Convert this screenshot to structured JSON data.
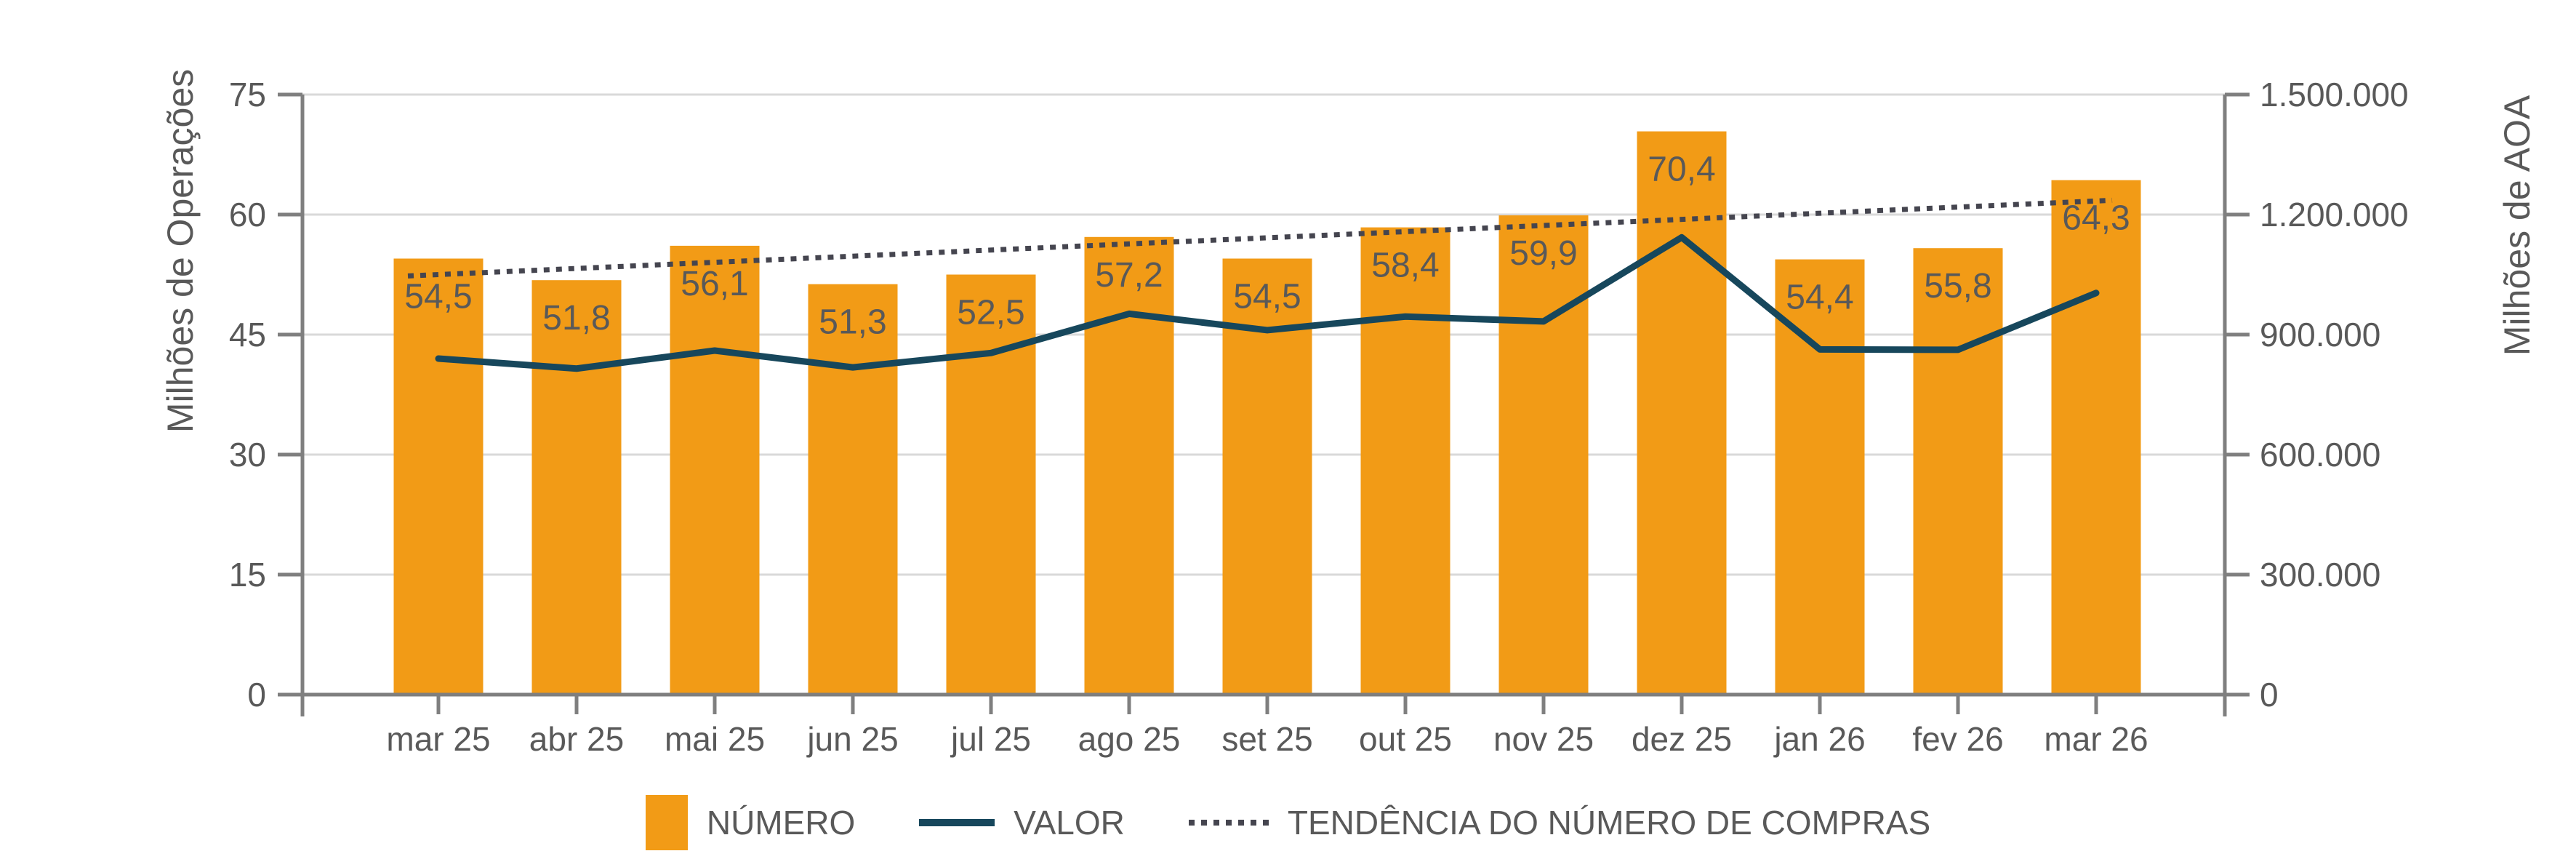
{
  "chart_data": {
    "type": "combo",
    "categories": [
      "mar 25",
      "abr 25",
      "mai 25",
      "jun 25",
      "jul 25",
      "ago 25",
      "set 25",
      "out 25",
      "nov 25",
      "dez 25",
      "jan 26",
      "fev 26",
      "mar 26"
    ],
    "series": [
      {
        "name": "NÚMERO",
        "type": "bar",
        "axis": "left",
        "values": [
          54.5,
          51.8,
          56.1,
          51.3,
          52.5,
          57.2,
          54.5,
          58.4,
          59.9,
          70.4,
          54.4,
          55.8,
          64.3
        ],
        "labels": [
          "54,5",
          "51,8",
          "56,1",
          "51,3",
          "52,5",
          "57,2",
          "54,5",
          "58,4",
          "59,9",
          "70,4",
          "54,4",
          "55,8",
          "64,3"
        ]
      },
      {
        "name": "VALOR",
        "type": "line",
        "axis": "right",
        "values": [
          840000,
          815000,
          860000,
          818000,
          854000,
          952000,
          911000,
          945000,
          933000,
          1143000,
          863000,
          862000,
          1004000
        ]
      },
      {
        "name": "TENDÊNCIA DO NÚMERO DE COMPRAS",
        "type": "trendline",
        "axis": "left",
        "start": 52.5,
        "end": 61.7
      }
    ],
    "left_axis": {
      "title": "Milhões de Operações",
      "min": 0,
      "max": 75,
      "step": 15,
      "tick_values": [
        0,
        15,
        30,
        45,
        60,
        75
      ],
      "ticks": [
        "0",
        "15",
        "30",
        "45",
        "60",
        "75"
      ]
    },
    "right_axis": {
      "title": "Milhões de AOA",
      "min": 0,
      "max": 1500000,
      "step": 300000,
      "tick_values": [
        0,
        300000,
        600000,
        900000,
        1200000,
        1500000
      ],
      "ticks": [
        "0",
        "300.000",
        "600.000",
        "900.000",
        "1.200.000",
        "1.500.000"
      ]
    },
    "legend_position": "bottom",
    "grid": "horizontal",
    "colors": {
      "bar": "#F29B16",
      "line": "#17475C",
      "trend": "#45454F",
      "grid": "#D9D9D9",
      "axis": "#7F7F7F",
      "text": "#595959"
    }
  }
}
